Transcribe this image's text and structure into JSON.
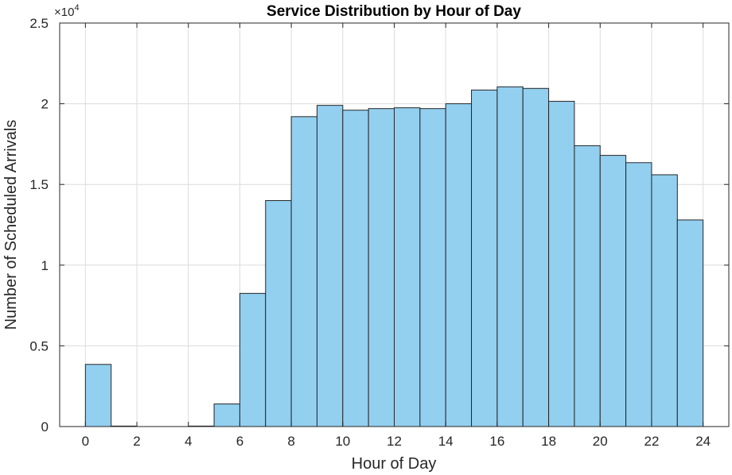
{
  "chart_data": {
    "type": "bar",
    "title": "Service Distribution by Hour of Day",
    "xlabel": "Hour of Day",
    "ylabel": "Number of Scheduled Arrivals",
    "y_exponent_label": "×10",
    "y_exponent": "4",
    "xlim": [
      -1,
      25
    ],
    "ylim": [
      0,
      25000
    ],
    "grid": true,
    "bar_color": "#93cfef",
    "edge_color": "#262626",
    "bin_edges": [
      0,
      1,
      2,
      3,
      4,
      5,
      6,
      7,
      8,
      9,
      10,
      11,
      12,
      13,
      14,
      15,
      16,
      17,
      18,
      19,
      20,
      21,
      22,
      23,
      24
    ],
    "values": [
      3850,
      30,
      0,
      0,
      30,
      1400,
      8250,
      14000,
      19200,
      19900,
      19600,
      19700,
      19750,
      19700,
      20000,
      20850,
      21050,
      20950,
      20150,
      17400,
      16800,
      16350,
      15600,
      12800
    ],
    "x_ticks": [
      "0",
      "2",
      "4",
      "6",
      "8",
      "10",
      "12",
      "14",
      "16",
      "18",
      "20",
      "22",
      "24"
    ],
    "y_ticks": [
      "0",
      "0.5",
      "1",
      "1.5",
      "2",
      "2.5"
    ]
  }
}
